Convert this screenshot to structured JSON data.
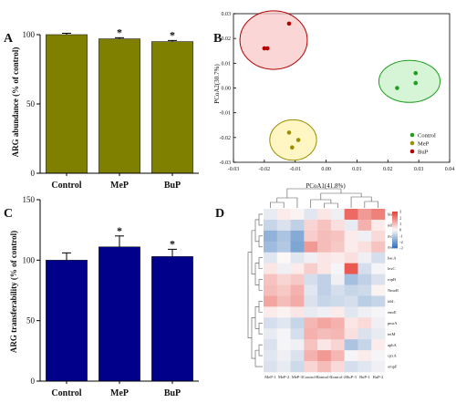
{
  "chart_data": [
    {
      "panel": "A",
      "type": "bar",
      "ylabel": "ARG abundance (% of control)",
      "ylim": [
        0,
        100
      ],
      "yticks": [
        0,
        50,
        100
      ],
      "categories": [
        "Control",
        "MeP",
        "BuP"
      ],
      "values": [
        100,
        97,
        95
      ],
      "errors": [
        1,
        0.8,
        0.8
      ],
      "significance": [
        "",
        "*",
        "*"
      ],
      "color": "#808000"
    },
    {
      "panel": "B",
      "type": "scatter",
      "xlabel": "PCoA1(41.8%)",
      "ylabel": "PCoA2(30.7%)",
      "xlim": [
        -0.03,
        0.04
      ],
      "ylim": [
        -0.03,
        0.03
      ],
      "xticks": [
        "-0.03",
        "-0.02",
        "-0.01",
        "0.00",
        "0.01",
        "0.02",
        "0.03",
        "0.04"
      ],
      "yticks": [
        "-0.03",
        "-0.02",
        "-0.01",
        "0.00",
        "0.01",
        "0.02",
        "0.03"
      ],
      "series": [
        {
          "name": "Control",
          "color": "#1f9e1f",
          "fill": "#c8f0c8",
          "points": [
            [
              0.023,
              0.0
            ],
            [
              0.029,
              0.006
            ],
            [
              0.029,
              0.002
            ]
          ]
        },
        {
          "name": "MeP",
          "color": "#9a8d00",
          "fill": "#fff3b0",
          "points": [
            [
              -0.012,
              -0.018
            ],
            [
              -0.009,
              -0.021
            ],
            [
              -0.011,
              -0.024
            ]
          ]
        },
        {
          "name": "BuP",
          "color": "#b30000",
          "fill": "#f8c8c8",
          "points": [
            [
              -0.02,
              0.016
            ],
            [
              -0.019,
              0.016
            ],
            [
              -0.012,
              0.026
            ]
          ]
        }
      ],
      "legend": "bottom-right"
    },
    {
      "panel": "C",
      "type": "bar",
      "ylabel": "ARG transferability  (% of control)",
      "ylim": [
        0,
        150
      ],
      "yticks": [
        0,
        50,
        100,
        150
      ],
      "categories": [
        "Control",
        "MeP",
        "BuP"
      ],
      "values": [
        100,
        111,
        103
      ],
      "errors": [
        6,
        9,
        6
      ],
      "significance": [
        "",
        "*",
        "*"
      ],
      "color": "#00008b"
    },
    {
      "panel": "D",
      "type": "heatmap",
      "columns": [
        "MeP-1",
        "MeP-2",
        "MeP-3",
        "Control-3",
        "Control-1",
        "Control-2",
        "BuP-3",
        "BuP-1",
        "BuP-2"
      ],
      "rows": [
        "blaA",
        "ndhA",
        "mdtB",
        "mexA",
        "bacA",
        "lexC",
        "ropB",
        "NmoR",
        "idrL",
        "emrE",
        "pmrA",
        "tetM",
        "aphA",
        "cpxA",
        "ompF"
      ],
      "colorbar_ticks": [
        "3",
        "2",
        "1",
        "0",
        "-1",
        "-2",
        "-3"
      ],
      "values": [
        [
          -0.3,
          0.2,
          0.1,
          -0.4,
          0.3,
          -0.2,
          2.4,
          1.6,
          2.0
        ],
        [
          -0.8,
          -0.5,
          -0.9,
          0.6,
          0.9,
          0.4,
          -0.3,
          1.2,
          0.2
        ],
        [
          -1.6,
          -1.2,
          -1.8,
          0.7,
          1.0,
          0.9,
          0.2,
          -0.2,
          0.5
        ],
        [
          -1.4,
          -1.1,
          -1.9,
          1.6,
          1.0,
          0.8,
          0.2,
          0.4,
          0.9
        ],
        [
          -0.4,
          0.0,
          -0.4,
          -0.2,
          0.3,
          0.2,
          0.4,
          -0.2,
          -0.6
        ],
        [
          0.3,
          -0.2,
          0.2,
          0.7,
          0.3,
          -0.1,
          2.7,
          -0.6,
          -0.1
        ],
        [
          0.9,
          0.6,
          0.8,
          -0.6,
          -0.9,
          -0.2,
          -1.3,
          -0.9,
          -0.5
        ],
        [
          1.0,
          0.8,
          1.2,
          -0.4,
          -0.9,
          -0.6,
          -0.8,
          -0.7,
          0.1
        ],
        [
          1.4,
          1.0,
          1.3,
          -0.5,
          -0.8,
          -0.7,
          -0.6,
          -1.0,
          -0.8
        ],
        [
          0.2,
          0.1,
          0.3,
          -0.3,
          -0.2,
          0.2,
          -0.4,
          -0.2,
          -0.1
        ],
        [
          -0.6,
          -0.4,
          -0.8,
          1.1,
          1.4,
          1.2,
          0.3,
          0.5,
          -0.2
        ],
        [
          -0.3,
          -0.1,
          -0.6,
          1.2,
          1.0,
          1.1,
          0.4,
          -0.5,
          -0.3
        ],
        [
          -0.5,
          -0.1,
          -0.2,
          0.9,
          0.3,
          0.6,
          -1.2,
          -0.8,
          0.2
        ],
        [
          -0.4,
          -0.2,
          -0.5,
          1.2,
          1.6,
          1.1,
          -0.1,
          0.2,
          -0.1
        ],
        [
          -0.5,
          -0.3,
          -0.7,
          0.6,
          1.0,
          0.5,
          -0.6,
          -0.4,
          -0.2
        ]
      ]
    }
  ]
}
